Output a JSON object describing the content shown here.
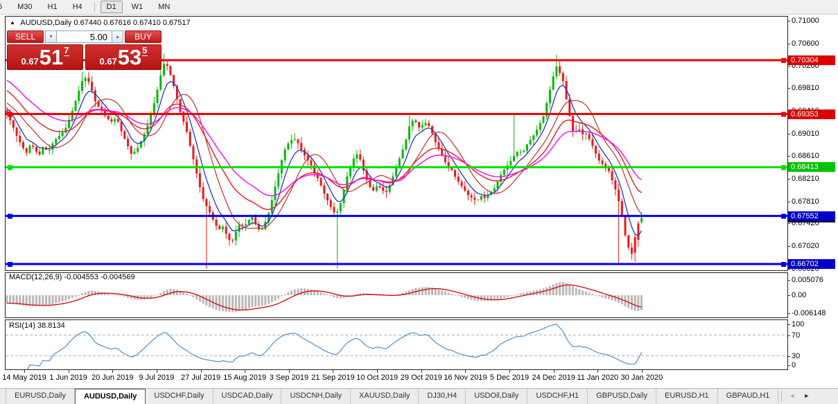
{
  "window": {
    "timeframes": [
      "5",
      "M30",
      "H1",
      "H4",
      "D1",
      "W1",
      "MN"
    ],
    "active_timeframe": "D1"
  },
  "chart": {
    "symbol": "AUDUSD,Daily",
    "ohlc_text": "0.67440 0.67616 0.67410 0.67517",
    "collapse_icon": "▲",
    "trade_panel": {
      "sell_label": "SELL",
      "buy_label": "BUY",
      "volume": "5.00",
      "spin_down": "▾",
      "spin_up": "▴",
      "sell_price_prefix": "0.67",
      "sell_price_main": "51",
      "sell_price_sup": "7",
      "buy_price_prefix": "0.67",
      "buy_price_main": "53",
      "buy_price_sup": "5"
    }
  },
  "price_axis": {
    "ticks": [
      "0.71000",
      "0.70600",
      "0.70200",
      "0.69810",
      "0.69410",
      "0.69010",
      "0.68610",
      "0.68210",
      "0.67810",
      "0.67420",
      "0.67020",
      "0.66620"
    ],
    "levels": [
      {
        "value": 0.70304,
        "label": "0.70304",
        "line": "#f60000",
        "badge": "#dd0000",
        "text": "#ffffff"
      },
      {
        "value": 0.69353,
        "label": "0.69353",
        "line": "#f60000",
        "badge": "#dd0000",
        "text": "#ffffff"
      },
      {
        "value": 0.68413,
        "label": "0.68413",
        "line": "#00e000",
        "badge": "#00c400",
        "text": "#ffffff"
      },
      {
        "value": 0.67552,
        "label": "0.67552",
        "line": "#0000f0",
        "badge": "#0000cc",
        "text": "#ffffff"
      },
      {
        "value": 0.66702,
        "label": "0.66702",
        "line": "#0000f0",
        "badge": "#0000cc",
        "text": "#ffffff"
      }
    ],
    "current_price": {
      "label": "0.67517",
      "value": 0.67517,
      "badge": "#000000",
      "text": "#ffffff"
    }
  },
  "indicators": {
    "macd": {
      "label": "MACD(12,26,9) -0.004553 -0.004569",
      "axis": [
        {
          "t": "0.005076",
          "v": 0.005076
        },
        {
          "t": "0.00",
          "v": 0
        },
        {
          "t": "-0.006148",
          "v": -0.006148
        }
      ]
    },
    "rsi": {
      "label": "RSI(14) 38.8134",
      "axis": [
        {
          "t": "100",
          "v": 100
        },
        {
          "t": "70",
          "v": 70
        },
        {
          "t": "30",
          "v": 30
        },
        {
          "t": "0",
          "v": 0
        }
      ],
      "dashed_levels": [
        70,
        30
      ]
    }
  },
  "date_axis": {
    "labels": [
      "14 May 2019",
      "1 Jun 2019",
      "20 Jun 2019",
      "9 Jul 2019",
      "27 Jul 2019",
      "15 Aug 2019",
      "3 Sep 2019",
      "21 Sep 2019",
      "10 Oct 2019",
      "29 Oct 2019",
      "16 Nov 2019",
      "5 Dec 2019",
      "24 Dec 2019",
      "11 Jan 2020",
      "30 Jan 2020"
    ],
    "x_start": 35,
    "x_step": 63.64
  },
  "tabs": {
    "items": [
      "EURUSD,Daily",
      "AUDUSD,Daily",
      "USDCHF,Daily",
      "USDCAD,Daily",
      "USDCNH,Daily",
      "XAUUSD,Daily",
      "DJ30,H4",
      "USDOil,Daily",
      "USDCHF,H1",
      "GBPUSD,Daily",
      "EURUSD,H1",
      "GBPAUD,H1"
    ],
    "active": "AUDUSD,Daily",
    "scroll_left": "◄",
    "scroll_right": "►"
  },
  "chart_data": {
    "type": "candlestick",
    "symbol": "AUDUSD",
    "timeframe": "Daily",
    "y_domain": [
      0.6659,
      0.7109
    ],
    "x_range": [
      8,
      930
    ],
    "candle_step": 4.72,
    "gen_start": -160,
    "pre_path": [
      [
        -160,
        0.7095
      ],
      [
        -120,
        0.706
      ],
      [
        -80,
        0.7015
      ],
      [
        -50,
        0.6985
      ],
      [
        -25,
        0.6958
      ],
      [
        0,
        0.6945
      ]
    ],
    "close_path": [
      [
        8,
        0.694
      ],
      [
        16,
        0.6921
      ],
      [
        24,
        0.6897
      ],
      [
        32,
        0.6878
      ],
      [
        38,
        0.6866
      ],
      [
        44,
        0.6882
      ],
      [
        50,
        0.6874
      ],
      [
        56,
        0.6861
      ],
      [
        62,
        0.6876
      ],
      [
        70,
        0.6869
      ],
      [
        78,
        0.6888
      ],
      [
        86,
        0.6897
      ],
      [
        94,
        0.6908
      ],
      [
        102,
        0.6932
      ],
      [
        110,
        0.6962
      ],
      [
        118,
        0.6993
      ],
      [
        124,
        0.7
      ],
      [
        130,
        0.6988
      ],
      [
        138,
        0.6955
      ],
      [
        146,
        0.6942
      ],
      [
        154,
        0.6928
      ],
      [
        162,
        0.6921
      ],
      [
        168,
        0.693
      ],
      [
        176,
        0.6902
      ],
      [
        184,
        0.688
      ],
      [
        190,
        0.6863
      ],
      [
        198,
        0.6874
      ],
      [
        206,
        0.6893
      ],
      [
        212,
        0.6912
      ],
      [
        220,
        0.6943
      ],
      [
        226,
        0.6973
      ],
      [
        232,
        0.7005
      ],
      [
        238,
        0.703
      ],
      [
        244,
        0.7012
      ],
      [
        250,
        0.6988
      ],
      [
        256,
        0.6958
      ],
      [
        262,
        0.693
      ],
      [
        268,
        0.6912
      ],
      [
        274,
        0.688
      ],
      [
        280,
        0.685
      ],
      [
        286,
        0.6818
      ],
      [
        292,
        0.6788
      ],
      [
        298,
        0.6772
      ],
      [
        304,
        0.6758
      ],
      [
        310,
        0.6741
      ],
      [
        316,
        0.6731
      ],
      [
        322,
        0.6737
      ],
      [
        328,
        0.6718
      ],
      [
        334,
        0.6707
      ],
      [
        340,
        0.6726
      ],
      [
        346,
        0.6742
      ],
      [
        352,
        0.6736
      ],
      [
        358,
        0.6747
      ],
      [
        364,
        0.6753
      ],
      [
        370,
        0.6737
      ],
      [
        376,
        0.6727
      ],
      [
        382,
        0.6742
      ],
      [
        388,
        0.6762
      ],
      [
        394,
        0.6792
      ],
      [
        400,
        0.6822
      ],
      [
        406,
        0.6852
      ],
      [
        412,
        0.6876
      ],
      [
        418,
        0.6887
      ],
      [
        424,
        0.6892
      ],
      [
        430,
        0.6884
      ],
      [
        436,
        0.6869
      ],
      [
        442,
        0.6857
      ],
      [
        448,
        0.6847
      ],
      [
        454,
        0.683
      ],
      [
        460,
        0.6819
      ],
      [
        466,
        0.6799
      ],
      [
        472,
        0.6784
      ],
      [
        478,
        0.6769
      ],
      [
        484,
        0.6757
      ],
      [
        490,
        0.6771
      ],
      [
        496,
        0.6801
      ],
      [
        502,
        0.6831
      ],
      [
        508,
        0.6851
      ],
      [
        514,
        0.6866
      ],
      [
        520,
        0.6854
      ],
      [
        526,
        0.6829
      ],
      [
        532,
        0.6809
      ],
      [
        538,
        0.6799
      ],
      [
        544,
        0.6809
      ],
      [
        550,
        0.6804
      ],
      [
        556,
        0.6794
      ],
      [
        562,
        0.6809
      ],
      [
        568,
        0.6829
      ],
      [
        574,
        0.6849
      ],
      [
        580,
        0.6869
      ],
      [
        586,
        0.6891
      ],
      [
        592,
        0.6921
      ],
      [
        598,
        0.6926
      ],
      [
        604,
        0.6911
      ],
      [
        610,
        0.6916
      ],
      [
        616,
        0.6921
      ],
      [
        622,
        0.6906
      ],
      [
        628,
        0.6886
      ],
      [
        634,
        0.6871
      ],
      [
        640,
        0.6856
      ],
      [
        646,
        0.6841
      ],
      [
        652,
        0.6836
      ],
      [
        658,
        0.6821
      ],
      [
        664,
        0.6811
      ],
      [
        670,
        0.6801
      ],
      [
        676,
        0.6791
      ],
      [
        682,
        0.6786
      ],
      [
        688,
        0.6781
      ],
      [
        694,
        0.6791
      ],
      [
        700,
        0.6786
      ],
      [
        706,
        0.6796
      ],
      [
        712,
        0.6801
      ],
      [
        718,
        0.6816
      ],
      [
        724,
        0.6831
      ],
      [
        730,
        0.6841
      ],
      [
        736,
        0.6851
      ],
      [
        742,
        0.6862
      ],
      [
        748,
        0.6871
      ],
      [
        754,
        0.6866
      ],
      [
        760,
        0.6881
      ],
      [
        766,
        0.6891
      ],
      [
        772,
        0.6901
      ],
      [
        778,
        0.6916
      ],
      [
        784,
        0.6931
      ],
      [
        790,
        0.6961
      ],
      [
        796,
        0.6991
      ],
      [
        802,
        0.7021
      ],
      [
        806,
        0.7014
      ],
      [
        810,
        0.6998
      ],
      [
        814,
        0.699
      ],
      [
        818,
        0.6952
      ],
      [
        822,
        0.693
      ],
      [
        826,
        0.6906
      ],
      [
        830,
        0.6901
      ],
      [
        834,
        0.6911
      ],
      [
        838,
        0.6906
      ],
      [
        842,
        0.6896
      ],
      [
        846,
        0.6901
      ],
      [
        850,
        0.6891
      ],
      [
        854,
        0.6881
      ],
      [
        858,
        0.6871
      ],
      [
        862,
        0.6856
      ],
      [
        866,
        0.6851
      ],
      [
        870,
        0.6846
      ],
      [
        874,
        0.6841
      ],
      [
        878,
        0.6836
      ],
      [
        882,
        0.6821
      ],
      [
        886,
        0.6811
      ],
      [
        890,
        0.6791
      ],
      [
        894,
        0.6776
      ],
      [
        898,
        0.6751
      ],
      [
        902,
        0.6721
      ],
      [
        906,
        0.6701
      ],
      [
        910,
        0.6691
      ],
      [
        914,
        0.6683
      ],
      [
        918,
        0.6686
      ],
      [
        922,
        0.6712
      ],
      [
        926,
        0.6744
      ],
      [
        930,
        0.6752
      ]
    ],
    "special_highs": [
      [
        120,
        0.701
      ],
      [
        236,
        0.7042
      ],
      [
        592,
        0.6932
      ],
      [
        742,
        0.6936
      ],
      [
        802,
        0.704
      ]
    ],
    "special_lows": [
      [
        296,
        0.6662
      ],
      [
        488,
        0.6663
      ],
      [
        893,
        0.6669
      ],
      [
        916,
        0.6671
      ]
    ],
    "tail_candles": [
      {
        "o": 0.6718,
        "h": 0.6722,
        "l": 0.6674,
        "c": 0.669
      },
      {
        "o": 0.6742,
        "h": 0.6746,
        "l": 0.6701,
        "c": 0.6713
      },
      {
        "o": 0.6744,
        "h": 0.67616,
        "l": 0.6741,
        "c": 0.67517
      }
    ],
    "moving_averages": [
      {
        "name": "ma-fast",
        "method": "ema",
        "period": 6,
        "color": "#2233cc",
        "width": 1.3
      },
      {
        "name": "ma-mid",
        "method": "sma",
        "period": 12,
        "color": "#c03030",
        "width": 1.2
      },
      {
        "name": "ma-slow",
        "method": "ema",
        "period": 22,
        "color": "#f21616",
        "width": 1.4
      },
      {
        "name": "ma-slowest",
        "method": "ema",
        "period": 33,
        "color": "#ff00ff",
        "width": 1.4
      }
    ],
    "macd_params": {
      "fast": 12,
      "slow": 26,
      "signal": 9
    },
    "rsi_params": {
      "period": 14
    },
    "colors": {
      "up": "#00bb00",
      "down": "#f21616",
      "macd_hist": "#b8b8b8",
      "macd_signal": "#dd0000",
      "rsi_line": "#4b8fd5",
      "rsi_grid": "#b0b0b0"
    }
  }
}
